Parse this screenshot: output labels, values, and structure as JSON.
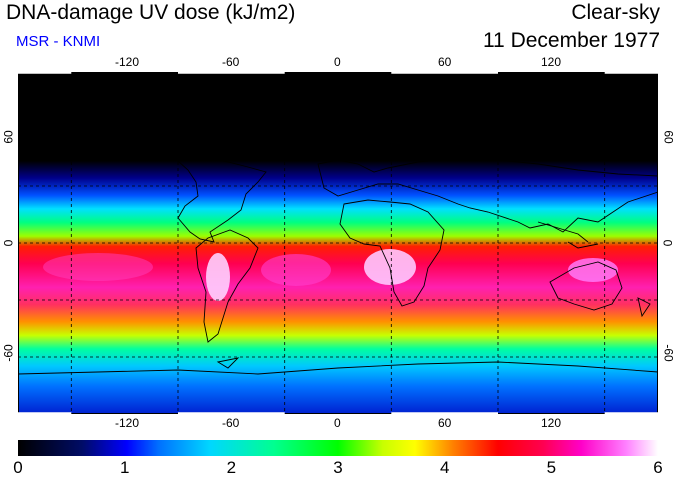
{
  "header": {
    "title": "DNA-damage UV dose (kJ/m2)",
    "subtitle": "MSR - KNMI",
    "sky_condition": "Clear-sky",
    "date": "11 December 1977"
  },
  "map": {
    "projection": "equirectangular",
    "lon_range": [
      -180,
      180
    ],
    "lat_range": [
      -90,
      90
    ],
    "lon_ticks": [
      "-120",
      "-60",
      "0",
      "60",
      "120"
    ],
    "lat_ticks_left": [
      "60",
      "0",
      "-60"
    ],
    "lat_ticks_right": [
      "60",
      "0",
      "-60"
    ]
  },
  "colorbar": {
    "labels": [
      "0",
      "1",
      "2",
      "3",
      "4",
      "5",
      "6"
    ],
    "min": 0,
    "max": 6
  },
  "colors": {
    "subtitle": "#0000ff",
    "grid": "#000000",
    "frame": "#000000"
  }
}
